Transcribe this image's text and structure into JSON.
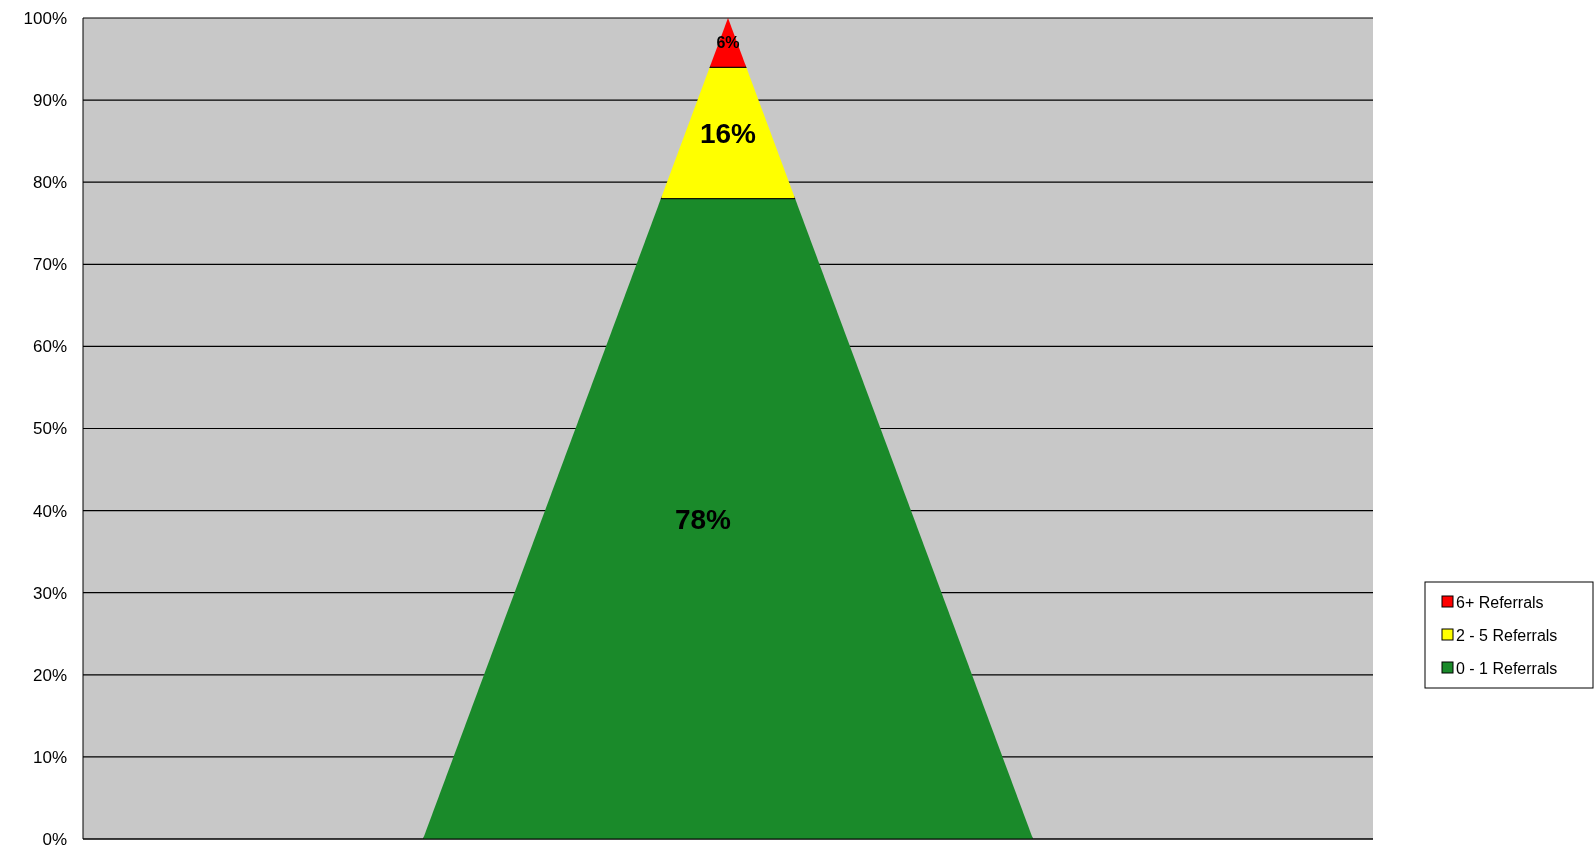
{
  "chart_data": {
    "type": "bar",
    "stacked": true,
    "categories": [
      null
    ],
    "series": [
      {
        "name": "0 - 1 Referrals",
        "color": "#1a8a2a",
        "values": [
          78
        ],
        "value_labels": [
          "78%"
        ]
      },
      {
        "name": "2 - 5 Referrals",
        "color": "#ffff00",
        "values": [
          16
        ],
        "value_labels": [
          "16%"
        ]
      },
      {
        "name": "6+ Referrals",
        "color": "#ff0000",
        "values": [
          6
        ],
        "value_labels": [
          "6%"
        ]
      }
    ],
    "ylim": [
      0,
      100
    ],
    "yticks": [
      {
        "value": 0,
        "label": "0%"
      },
      {
        "value": 10,
        "label": "10%"
      },
      {
        "value": 20,
        "label": "20%"
      },
      {
        "value": 30,
        "label": "30%"
      },
      {
        "value": 40,
        "label": "40%"
      },
      {
        "value": 50,
        "label": "50%"
      },
      {
        "value": 60,
        "label": "60%"
      },
      {
        "value": 70,
        "label": "70%"
      },
      {
        "value": 80,
        "label": "80%"
      },
      {
        "value": 90,
        "label": "90%"
      },
      {
        "value": 100,
        "label": "100%"
      }
    ],
    "grid": "y",
    "legend": "right"
  }
}
